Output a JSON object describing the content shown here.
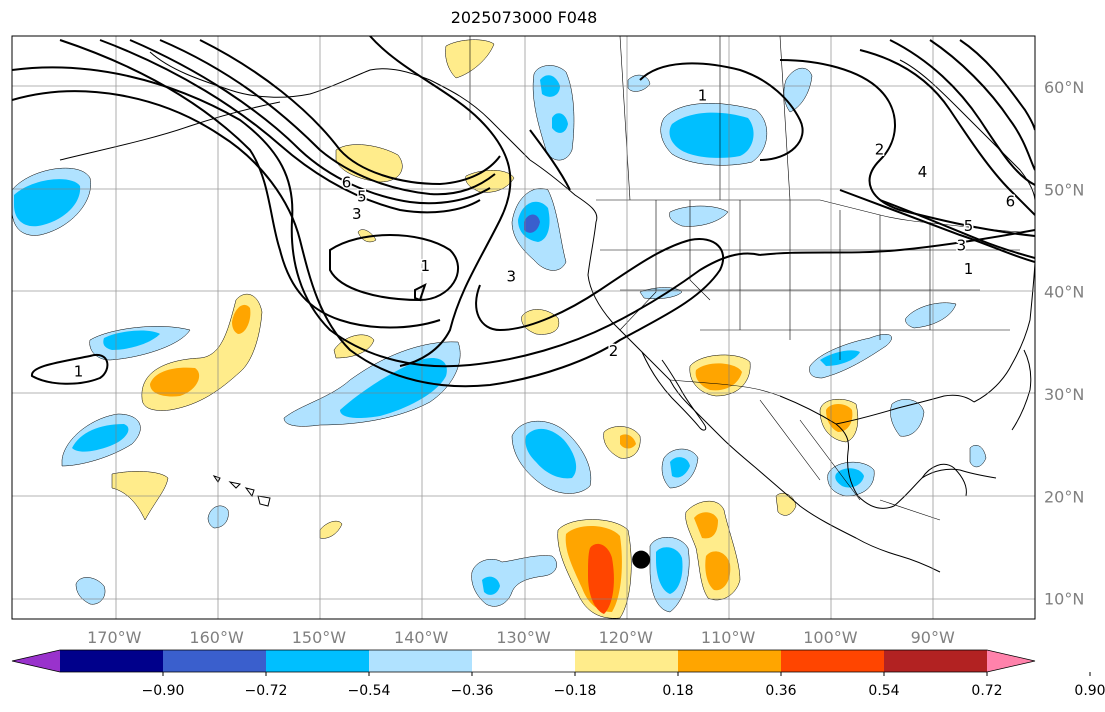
{
  "title": "2025073000 F048",
  "map": {
    "projection": "plate carree",
    "lon_range": [
      -180,
      -80
    ],
    "lat_range": [
      8,
      65
    ],
    "grid": true,
    "lon_ticks": [
      {
        "lon": -170,
        "label": "170°W"
      },
      {
        "lon": -160,
        "label": "160°W"
      },
      {
        "lon": -150,
        "label": "150°W"
      },
      {
        "lon": -140,
        "label": "140°W"
      },
      {
        "lon": -130,
        "label": "130°W"
      },
      {
        "lon": -120,
        "label": "120°W"
      },
      {
        "lon": -110,
        "label": "110°W"
      },
      {
        "lon": -100,
        "label": "100°W"
      },
      {
        "lon": -90,
        "label": "90°W"
      }
    ],
    "lat_ticks": [
      {
        "lat": 10,
        "label": "10°N"
      },
      {
        "lat": 20,
        "label": "20°N"
      },
      {
        "lat": 30,
        "label": "30°N"
      },
      {
        "lat": 40,
        "label": "40°N"
      },
      {
        "lat": 50,
        "label": "50°N"
      },
      {
        "lat": 60,
        "label": "60°N"
      }
    ],
    "marker": {
      "lon": -118.5,
      "lat": 13.8,
      "color": "#000000"
    },
    "contour_labels": [
      {
        "text": "1",
        "lon": -173.5,
        "lat": 32.2
      },
      {
        "text": "6",
        "lon": -147.3,
        "lat": 50.7
      },
      {
        "text": "5",
        "lon": -145.8,
        "lat": 49.3
      },
      {
        "text": "3",
        "lon": -146.3,
        "lat": 47.6
      },
      {
        "text": "3",
        "lon": -131.2,
        "lat": 41.5
      },
      {
        "text": "1",
        "lon": -139.6,
        "lat": 42.5
      },
      {
        "text": "2",
        "lon": -121.2,
        "lat": 34.2
      },
      {
        "text": "1",
        "lon": -112.5,
        "lat": 59.2
      },
      {
        "text": "2",
        "lon": -95.2,
        "lat": 53.9
      },
      {
        "text": "4",
        "lon": -91.0,
        "lat": 51.7
      },
      {
        "text": "5",
        "lon": -86.5,
        "lat": 46.4
      },
      {
        "text": "3",
        "lon": -87.2,
        "lat": 44.5
      },
      {
        "text": "1",
        "lon": -86.5,
        "lat": 42.2
      },
      {
        "text": "6",
        "lon": -82.4,
        "lat": 48.8
      }
    ]
  },
  "colorbar": {
    "extend": "both",
    "colors": [
      "#9932cc",
      "#00008b",
      "#3a5fcd",
      "#00bfff",
      "#b0e2ff",
      "#ffffff",
      "#ffec8b",
      "#ffa500",
      "#ff4500",
      "#b22222",
      "#ff82ab"
    ],
    "ticks": [
      "−0.90",
      "−0.72",
      "−0.54",
      "−0.36",
      "−0.18",
      "0.18",
      "0.36",
      "0.54",
      "0.72",
      "0.90"
    ]
  },
  "shaded_anomalies": [
    {
      "level": "positive",
      "lon": -120.5,
      "lat": 13.8,
      "note": "strongest positive core"
    },
    {
      "level": "positive",
      "lon": -110.5,
      "lat": 31.5
    },
    {
      "level": "positive",
      "lon": -98.5,
      "lat": 28.0
    },
    {
      "level": "positive",
      "lon": -159.5,
      "lat": 32.5
    },
    {
      "level": "negative",
      "lon": -129.5,
      "lat": 46.7
    },
    {
      "level": "negative",
      "lon": -125.5,
      "lat": 24.5
    },
    {
      "level": "negative",
      "lon": -112.5,
      "lat": 55.5
    },
    {
      "level": "negative",
      "lon": -176.5,
      "lat": 49.0
    },
    {
      "level": "negative",
      "lon": -142.0,
      "lat": 30.0
    }
  ]
}
